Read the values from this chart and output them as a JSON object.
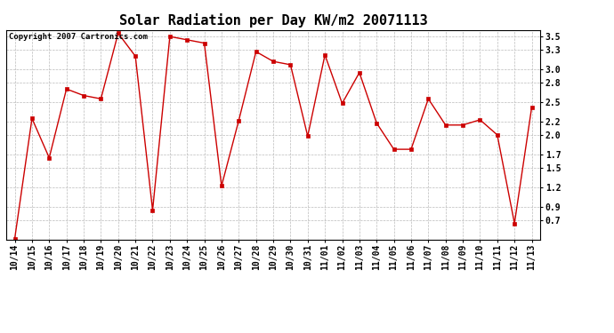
{
  "title": "Solar Radiation per Day KW/m2 20071113",
  "copyright_text": "Copyright 2007 Cartronics.com",
  "labels": [
    "10/14",
    "10/15",
    "10/16",
    "10/17",
    "10/18",
    "10/19",
    "10/20",
    "10/21",
    "10/22",
    "10/23",
    "10/24",
    "10/25",
    "10/26",
    "10/27",
    "10/28",
    "10/29",
    "10/30",
    "10/31",
    "11/01",
    "11/02",
    "11/03",
    "11/04",
    "11/05",
    "11/06",
    "11/07",
    "11/08",
    "11/09",
    "11/10",
    "11/11",
    "11/12",
    "11/13"
  ],
  "values": [
    0.42,
    2.25,
    1.65,
    2.7,
    2.6,
    2.55,
    3.55,
    3.2,
    0.85,
    3.5,
    3.45,
    3.4,
    1.22,
    2.22,
    3.27,
    3.12,
    3.07,
    1.98,
    3.22,
    2.48,
    2.95,
    2.18,
    1.78,
    1.78,
    2.55,
    2.15,
    2.15,
    2.23,
    2.0,
    0.65,
    2.42
  ],
  "line_color": "#cc0000",
  "marker_color": "#cc0000",
  "bg_color": "#ffffff",
  "grid_color": "#bbbbbb",
  "ylim": [
    0.4,
    3.6
  ],
  "yticks": [
    0.7,
    0.9,
    1.2,
    1.5,
    1.7,
    2.0,
    2.2,
    2.5,
    2.8,
    3.0,
    3.3,
    3.5
  ],
  "title_fontsize": 11,
  "tick_fontsize": 7,
  "copyright_fontsize": 6.5
}
